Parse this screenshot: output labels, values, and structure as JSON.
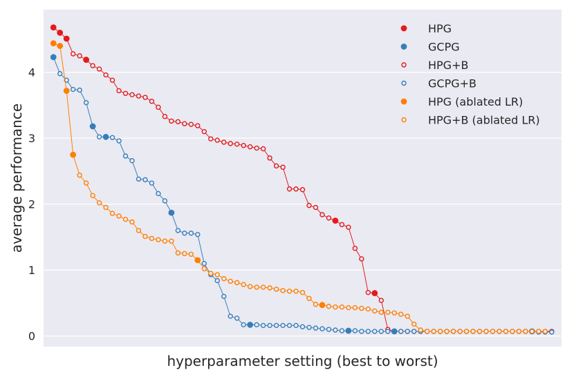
{
  "chart_data": {
    "type": "scatter",
    "title": "",
    "xlabel": "hyperparameter setting (best to worst)",
    "ylabel": "average performance",
    "ylim": [
      -0.16,
      4.95
    ],
    "yticks": [
      0,
      1,
      2,
      3,
      4
    ],
    "grid": true,
    "legend_position": "top-right",
    "colors": {
      "red": "#e41a1c",
      "blue": "#377eb8",
      "orange": "#ff7f00",
      "background": "#eaeaf2",
      "grid": "#ffffff"
    },
    "legend": [
      {
        "label": "HPG",
        "color": "#e41a1c",
        "marker": "filled"
      },
      {
        "label": "GCPG",
        "color": "#377eb8",
        "marker": "filled"
      },
      {
        "label": "HPG+B",
        "color": "#e41a1c",
        "marker": "hollow"
      },
      {
        "label": "GCPG+B",
        "color": "#377eb8",
        "marker": "hollow"
      },
      {
        "label": "HPG (ablated LR)",
        "color": "#ff7f00",
        "marker": "filled"
      },
      {
        "label": "HPG+B (ablated LR)",
        "color": "#ff7f00",
        "marker": "hollow"
      }
    ],
    "series": [
      {
        "color": "#e41a1c",
        "x_start": 1,
        "values": [
          4.68,
          4.6,
          4.51,
          4.28,
          4.25,
          4.19,
          4.1,
          4.05,
          3.96,
          3.88,
          3.72,
          3.68,
          3.66,
          3.64,
          3.62,
          3.56,
          3.47,
          3.33,
          3.26,
          3.25,
          3.22,
          3.21,
          3.19,
          3.1,
          2.99,
          2.97,
          2.94,
          2.92,
          2.91,
          2.89,
          2.87,
          2.85,
          2.84,
          2.7,
          2.58,
          2.56,
          2.23,
          2.23,
          2.22,
          1.98,
          1.95,
          1.84,
          1.79,
          1.75,
          1.69,
          1.65,
          1.33,
          1.17,
          0.66,
          0.65,
          0.54,
          0.1,
          0.07,
          0.07,
          0.07,
          0.07,
          0.07,
          0.07,
          0.07,
          0.07,
          0.07,
          0.07,
          0.07,
          0.07,
          0.07,
          0.07,
          0.07,
          0.07,
          0.07,
          0.07,
          0.07,
          0.07,
          0.07,
          0.07,
          0.07,
          0.07,
          0.07
        ],
        "filled": [
          1,
          2,
          3,
          6,
          44,
          50
        ]
      },
      {
        "color": "#377eb8",
        "x_start": 1,
        "values": [
          4.23,
          3.98,
          3.88,
          3.74,
          3.73,
          3.54,
          3.18,
          3.02,
          3.02,
          3.01,
          2.96,
          2.73,
          2.66,
          2.38,
          2.37,
          2.32,
          2.16,
          2.05,
          1.87,
          1.6,
          1.56,
          1.56,
          1.54,
          1.1,
          0.93,
          0.84,
          0.6,
          0.3,
          0.27,
          0.17,
          0.17,
          0.17,
          0.16,
          0.16,
          0.16,
          0.16,
          0.16,
          0.16,
          0.14,
          0.13,
          0.12,
          0.11,
          0.1,
          0.09,
          0.08,
          0.08,
          0.08,
          0.07,
          0.07,
          0.07,
          0.07,
          0.07,
          0.07,
          0.07,
          0.07,
          0.07,
          0.07,
          0.07,
          0.07,
          0.07,
          0.07,
          0.07,
          0.07,
          0.07,
          0.07,
          0.07,
          0.07,
          0.07,
          0.07,
          0.07,
          0.07,
          0.07,
          0.07,
          0.07,
          0.06,
          0.06,
          0.06
        ],
        "filled": [
          1,
          7,
          9,
          19,
          31,
          46,
          53,
          74
        ]
      },
      {
        "color": "#ff7f00",
        "x_start": 1,
        "values": [
          4.44,
          4.4,
          3.72,
          2.75,
          2.44,
          2.32,
          2.13,
          2.02,
          1.95,
          1.86,
          1.82,
          1.77,
          1.73,
          1.6,
          1.51,
          1.48,
          1.46,
          1.44,
          1.44,
          1.26,
          1.25,
          1.24,
          1.15,
          1.02,
          0.95,
          0.93,
          0.87,
          0.83,
          0.81,
          0.78,
          0.75,
          0.74,
          0.74,
          0.73,
          0.71,
          0.69,
          0.68,
          0.68,
          0.66,
          0.57,
          0.48,
          0.47,
          0.45,
          0.44,
          0.44,
          0.43,
          0.43,
          0.42,
          0.41,
          0.38,
          0.36,
          0.36,
          0.35,
          0.33,
          0.3,
          0.18,
          0.09,
          0.07,
          0.07,
          0.07,
          0.07,
          0.07,
          0.07,
          0.07,
          0.07,
          0.07,
          0.07,
          0.07,
          0.07,
          0.07,
          0.07,
          0.07,
          0.07,
          0.07,
          0.07,
          0.07
        ],
        "filled": [
          1,
          2,
          3,
          4,
          23,
          42
        ]
      }
    ]
  }
}
